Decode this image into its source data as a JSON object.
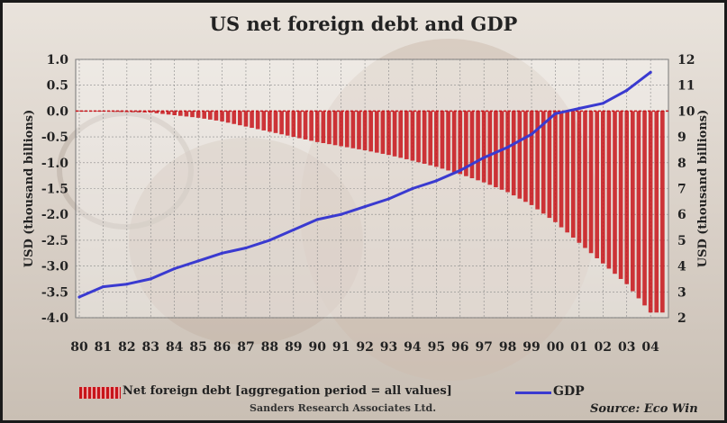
{
  "chart_data": {
    "type": "bar+line",
    "title": "US net foreign debt and GDP",
    "ylabel_left": "USD (thousand billions)",
    "ylabel_right": "USD (thousand billions)",
    "ylim_left": [
      -4.0,
      1.0
    ],
    "yticks_left": [
      "1.0",
      "0.5",
      "0.0",
      "-0.5",
      "-1.0",
      "-1.5",
      "-2.0",
      "-2.5",
      "-3.0",
      "-3.5",
      "-4.0"
    ],
    "ylim_right": [
      2,
      12
    ],
    "yticks_right": [
      "12",
      "11",
      "10",
      "9",
      "8",
      "7",
      "6",
      "5",
      "4",
      "3",
      "2"
    ],
    "x_tick_labels": [
      "80",
      "81",
      "82",
      "83",
      "84",
      "85",
      "86",
      "87",
      "88",
      "89",
      "90",
      "91",
      "92",
      "93",
      "94",
      "95",
      "96",
      "97",
      "98",
      "99",
      "00",
      "01",
      "02",
      "03",
      "04"
    ],
    "grid": true,
    "series": [
      {
        "name": "Net foreign debt [aggregation period = all values]",
        "kind": "bar",
        "color": "#c8141a",
        "x": [
          1980,
          1981,
          1982,
          1983,
          1984,
          1985,
          1986,
          1987,
          1988,
          1989,
          1990,
          1991,
          1992,
          1993,
          1994,
          1995,
          1996,
          1997,
          1998,
          1999,
          2000,
          2001,
          2002,
          2003,
          2004
        ],
        "values": [
          -0.01,
          -0.01,
          -0.02,
          -0.03,
          -0.08,
          -0.13,
          -0.2,
          -0.3,
          -0.4,
          -0.5,
          -0.6,
          -0.68,
          -0.76,
          -0.85,
          -0.96,
          -1.08,
          -1.22,
          -1.38,
          -1.57,
          -1.82,
          -2.15,
          -2.55,
          -2.95,
          -3.35,
          -3.9
        ]
      },
      {
        "name": "GDP",
        "kind": "line",
        "color": "#3a3ad0",
        "x": [
          1980,
          1981,
          1982,
          1983,
          1984,
          1985,
          1986,
          1987,
          1988,
          1989,
          1990,
          1991,
          1992,
          1993,
          1994,
          1995,
          1996,
          1997,
          1998,
          1999,
          2000,
          2001,
          2002,
          2003,
          2004
        ],
        "values": [
          2.8,
          3.2,
          3.3,
          3.5,
          3.9,
          4.2,
          4.5,
          4.7,
          5.0,
          5.4,
          5.8,
          6.0,
          6.3,
          6.6,
          7.0,
          7.3,
          7.7,
          8.2,
          8.6,
          9.1,
          9.9,
          10.1,
          10.3,
          10.8,
          11.5
        ]
      }
    ]
  },
  "legend": {
    "debt_label": "Net foreign debt [aggregation period = all values]",
    "gdp_label": "GDP"
  },
  "credit": "Sanders Research Associates Ltd.",
  "source": "Source: Eco Win"
}
